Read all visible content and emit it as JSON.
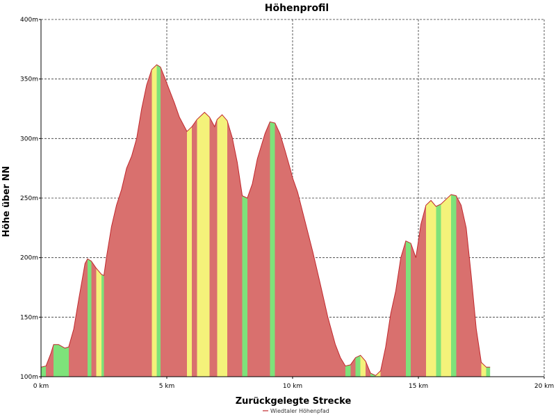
{
  "chart_data": {
    "type": "area",
    "title": "Höhenprofil",
    "xlabel": "Zurückgelegte Strecke",
    "ylabel": "Höhe über NN",
    "xlim": [
      0,
      20
    ],
    "ylim": [
      100,
      400
    ],
    "x_ticks": [
      0,
      5,
      10,
      15,
      20
    ],
    "x_tick_labels": [
      "0 km",
      "5 km",
      "10 km",
      "15 km",
      "20 km"
    ],
    "y_ticks": [
      100,
      150,
      200,
      250,
      300,
      350,
      400
    ],
    "y_tick_labels": [
      "100m",
      "150m",
      "200m",
      "250m",
      "300m",
      "350m",
      "400m"
    ],
    "grid": true,
    "legend_position": "bottom-center",
    "colors": {
      "line": "#c0272d",
      "steep": "#d9706e",
      "medium": "#f4f27a",
      "flat": "#7ee27a"
    },
    "series": [
      {
        "name": "Wiedtaler Höhenpfad",
        "x": [
          0.0,
          0.2,
          0.4,
          0.5,
          0.7,
          0.95,
          1.1,
          1.3,
          1.5,
          1.75,
          1.85,
          2.0,
          2.2,
          2.4,
          2.5,
          2.6,
          2.8,
          3.0,
          3.2,
          3.4,
          3.6,
          3.8,
          4.0,
          4.2,
          4.4,
          4.6,
          4.75,
          4.9,
          5.1,
          5.3,
          5.5,
          5.8,
          6.0,
          6.2,
          6.5,
          6.7,
          6.9,
          7.0,
          7.2,
          7.4,
          7.6,
          7.8,
          8.0,
          8.2,
          8.4,
          8.6,
          8.9,
          9.1,
          9.3,
          9.5,
          9.7,
          9.9,
          10.0,
          10.2,
          10.5,
          10.8,
          11.1,
          11.4,
          11.7,
          11.9,
          12.1,
          12.3,
          12.5,
          12.7,
          12.9,
          13.1,
          13.3,
          13.5,
          13.7,
          13.9,
          14.1,
          14.3,
          14.5,
          14.7,
          14.9,
          15.1,
          15.3,
          15.5,
          15.7,
          15.9,
          16.1,
          16.3,
          16.5,
          16.7,
          16.9,
          17.1,
          17.3,
          17.5,
          17.7,
          17.85
        ],
        "y": [
          108,
          109,
          120,
          127,
          127,
          124,
          125,
          140,
          165,
          195,
          199,
          197,
          191,
          186,
          185,
          200,
          226,
          244,
          257,
          275,
          285,
          300,
          325,
          345,
          358,
          362,
          360,
          352,
          341,
          330,
          318,
          306,
          310,
          316,
          322,
          318,
          310,
          316,
          320,
          315,
          301,
          280,
          252,
          250,
          262,
          283,
          304,
          314,
          313,
          304,
          290,
          275,
          267,
          255,
          230,
          205,
          178,
          150,
          127,
          116,
          109,
          110,
          116,
          118,
          113,
          103,
          101,
          105,
          125,
          153,
          172,
          200,
          214,
          212,
          200,
          228,
          244,
          248,
          243,
          245,
          249,
          253,
          252,
          244,
          225,
          185,
          140,
          112,
          108,
          108
        ]
      }
    ]
  }
}
